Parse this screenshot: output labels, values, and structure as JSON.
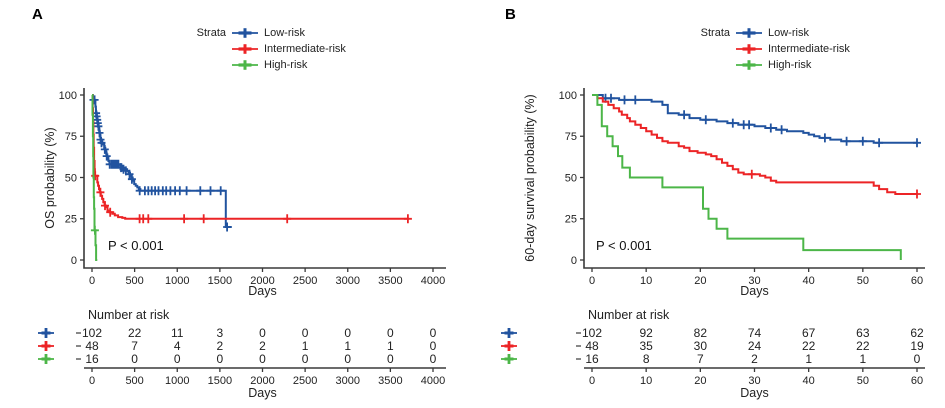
{
  "figure": {
    "background": "#ffffff"
  },
  "panels": [
    {
      "label": "A",
      "legend": {
        "title": "Strata",
        "items": [
          {
            "label": "Low-risk",
            "color": "#21539f"
          },
          {
            "label": "Intermediate-risk",
            "color": "#ec2426"
          },
          {
            "label": "High-risk",
            "color": "#4cb648"
          }
        ]
      }
    },
    {
      "label": "B",
      "legend": {
        "title": "Strata",
        "items": [
          {
            "label": "Low-risk",
            "color": "#21539f"
          },
          {
            "label": "Intermediate-risk",
            "color": "#ec2426"
          },
          {
            "label": "High-risk",
            "color": "#4cb648"
          }
        ]
      }
    }
  ],
  "chart_data": [
    {
      "type": "line",
      "variant": "kaplan_meier_step",
      "panel_label": "A",
      "title": "",
      "xlabel": "Days",
      "ylabel": "OS probability (%)",
      "xlim": [
        0,
        4000
      ],
      "xticks": [
        0,
        500,
        1000,
        1500,
        2000,
        2500,
        3000,
        3500,
        4000
      ],
      "ylim": [
        0,
        100
      ],
      "yticks": [
        0,
        25,
        50,
        75,
        100
      ],
      "grid": false,
      "legend_position": "top",
      "p_value": "P < 0.001",
      "series": [
        {
          "name": "Low-risk",
          "color": "#21539f",
          "steps": [
            [
              0,
              100
            ],
            [
              10,
              97
            ],
            [
              40,
              93
            ],
            [
              46,
              90
            ],
            [
              52,
              88
            ],
            [
              58,
              86
            ],
            [
              64,
              84
            ],
            [
              70,
              82
            ],
            [
              77,
              80
            ],
            [
              84,
              78
            ],
            [
              91,
              76
            ],
            [
              98,
              74
            ],
            [
              106,
              72
            ],
            [
              118,
              71
            ],
            [
              130,
              70
            ],
            [
              143,
              68
            ],
            [
              156,
              66
            ],
            [
              168,
              64
            ],
            [
              180,
              62
            ],
            [
              192,
              60
            ],
            [
              204,
              58
            ],
            [
              330,
              57
            ],
            [
              358,
              56
            ],
            [
              386,
              55
            ],
            [
              412,
              54
            ],
            [
              428,
              53
            ],
            [
              446,
              51
            ],
            [
              462,
              50
            ],
            [
              478,
              48
            ],
            [
              495,
              46
            ],
            [
              513,
              45
            ],
            [
              531,
              44
            ],
            [
              549,
              43
            ],
            [
              568,
              42
            ],
            [
              1570,
              20
            ],
            [
              1640,
              20
            ]
          ],
          "censor_marks": [
            [
              18,
              97
            ],
            [
              30,
              97
            ],
            [
              48,
              89
            ],
            [
              54,
              87
            ],
            [
              61,
              85
            ],
            [
              68,
              83
            ],
            [
              75,
              81
            ],
            [
              88,
              77
            ],
            [
              100,
              73
            ],
            [
              112,
              71
            ],
            [
              150,
              67
            ],
            [
              172,
              63
            ],
            [
              208,
              58
            ],
            [
              230,
              58
            ],
            [
              246,
              58
            ],
            [
              262,
              58
            ],
            [
              278,
              58
            ],
            [
              294,
              58
            ],
            [
              310,
              58
            ],
            [
              340,
              56
            ],
            [
              370,
              55
            ],
            [
              398,
              54
            ],
            [
              440,
              52
            ],
            [
              468,
              49
            ],
            [
              560,
              42
            ],
            [
              620,
              42
            ],
            [
              660,
              42
            ],
            [
              700,
              42
            ],
            [
              740,
              42
            ],
            [
              780,
              42
            ],
            [
              830,
              42
            ],
            [
              870,
              42
            ],
            [
              920,
              42
            ],
            [
              975,
              42
            ],
            [
              1030,
              42
            ],
            [
              1110,
              42
            ],
            [
              1270,
              42
            ],
            [
              1390,
              42
            ],
            [
              1510,
              42
            ],
            [
              1585,
              20
            ]
          ]
        },
        {
          "name": "Intermediate-risk",
          "color": "#ec2426",
          "steps": [
            [
              0,
              100
            ],
            [
              8,
              92
            ],
            [
              12,
              84
            ],
            [
              16,
              76
            ],
            [
              20,
              68
            ],
            [
              25,
              60
            ],
            [
              30,
              55
            ],
            [
              34,
              51
            ],
            [
              62,
              47
            ],
            [
              72,
              45
            ],
            [
              82,
              43
            ],
            [
              92,
              41
            ],
            [
              103,
              39
            ],
            [
              118,
              37
            ],
            [
              133,
              35
            ],
            [
              148,
              33
            ],
            [
              164,
              32
            ],
            [
              182,
              30
            ],
            [
              208,
              29
            ],
            [
              238,
              28
            ],
            [
              268,
              27
            ],
            [
              306,
              26
            ],
            [
              356,
              25.5
            ],
            [
              390,
              25
            ],
            [
              3720,
              25
            ]
          ],
          "censor_marks": [
            [
              38,
              51
            ],
            [
              98,
              41
            ],
            [
              152,
              33
            ],
            [
              214,
              29
            ],
            [
              558,
              25
            ],
            [
              600,
              25
            ],
            [
              660,
              25
            ],
            [
              1080,
              25
            ],
            [
              1310,
              25
            ],
            [
              2290,
              25
            ],
            [
              3705,
              25
            ]
          ]
        },
        {
          "name": "High-risk",
          "color": "#4cb648",
          "steps": [
            [
              0,
              100
            ],
            [
              6,
              88
            ],
            [
              10,
              75
            ],
            [
              14,
              63
            ],
            [
              17,
              50
            ],
            [
              21,
              38
            ],
            [
              25,
              31
            ],
            [
              29,
              18
            ],
            [
              41,
              9
            ],
            [
              48,
              0
            ],
            [
              62,
              0
            ]
          ],
          "censor_marks": [
            [
              34,
              18
            ]
          ]
        }
      ],
      "risk_table": {
        "title": "Number at risk",
        "xlabel": "Days",
        "times": [
          0,
          500,
          1000,
          1500,
          2000,
          2500,
          3000,
          3500,
          4000
        ],
        "rows": [
          {
            "name": "Low-risk",
            "color": "#21539f",
            "counts": [
              102,
              22,
              11,
              3,
              0,
              0,
              0,
              0,
              0
            ]
          },
          {
            "name": "Intermediate-risk",
            "color": "#ec2426",
            "counts": [
              48,
              7,
              4,
              2,
              2,
              1,
              1,
              1,
              0
            ]
          },
          {
            "name": "High-risk",
            "color": "#4cb648",
            "counts": [
              16,
              0,
              0,
              0,
              0,
              0,
              0,
              0,
              0
            ]
          }
        ]
      }
    },
    {
      "type": "line",
      "variant": "kaplan_meier_step",
      "panel_label": "B",
      "title": "",
      "xlabel": "Days",
      "ylabel": "60-day survival probability (%)",
      "xlim": [
        0,
        60
      ],
      "xticks": [
        0,
        10,
        20,
        30,
        40,
        50,
        60
      ],
      "ylim": [
        0,
        100
      ],
      "yticks": [
        0,
        25,
        50,
        75,
        100
      ],
      "grid": false,
      "legend_position": "top",
      "p_value": "P < 0.001",
      "series": [
        {
          "name": "Low-risk",
          "color": "#21539f",
          "steps": [
            [
              0,
              100
            ],
            [
              2,
              98
            ],
            [
              5,
              97
            ],
            [
              11,
              96
            ],
            [
              13,
              94
            ],
            [
              14,
              89
            ],
            [
              16,
              88
            ],
            [
              18,
              86
            ],
            [
              20,
              85
            ],
            [
              23,
              84
            ],
            [
              25,
              83
            ],
            [
              27,
              82
            ],
            [
              30,
              81
            ],
            [
              32,
              80
            ],
            [
              34,
              79
            ],
            [
              36,
              78
            ],
            [
              39,
              77
            ],
            [
              40,
              76
            ],
            [
              41,
              75
            ],
            [
              42,
              74
            ],
            [
              44,
              73
            ],
            [
              46,
              72
            ],
            [
              52,
              71
            ],
            [
              60,
              71
            ]
          ],
          "censor_marks": [
            [
              2.5,
              98
            ],
            [
              3.5,
              98
            ],
            [
              6,
              97
            ],
            [
              8,
              97
            ],
            [
              17,
              88
            ],
            [
              21,
              85
            ],
            [
              26,
              83
            ],
            [
              28,
              82
            ],
            [
              29,
              82
            ],
            [
              33,
              80
            ],
            [
              35,
              79
            ],
            [
              43,
              74
            ],
            [
              47,
              72
            ],
            [
              50,
              72
            ],
            [
              53,
              71
            ],
            [
              60,
              71
            ]
          ]
        },
        {
          "name": "Intermediate-risk",
          "color": "#ec2426",
          "steps": [
            [
              0,
              100
            ],
            [
              1,
              98
            ],
            [
              2,
              96
            ],
            [
              3,
              94
            ],
            [
              4,
              92
            ],
            [
              5,
              90
            ],
            [
              5.5,
              88
            ],
            [
              6.5,
              86
            ],
            [
              7,
              84
            ],
            [
              8,
              82
            ],
            [
              9,
              80
            ],
            [
              10,
              78
            ],
            [
              11,
              76
            ],
            [
              12,
              74
            ],
            [
              13,
              72
            ],
            [
              14,
              71
            ],
            [
              16,
              69
            ],
            [
              17,
              68
            ],
            [
              18,
              66
            ],
            [
              19.5,
              65
            ],
            [
              21,
              64
            ],
            [
              22,
              63
            ],
            [
              23,
              61
            ],
            [
              24,
              59
            ],
            [
              25,
              57
            ],
            [
              26,
              55
            ],
            [
              27,
              53
            ],
            [
              28,
              52
            ],
            [
              31,
              51
            ],
            [
              32,
              50
            ],
            [
              33,
              48
            ],
            [
              34,
              47
            ],
            [
              52,
              45
            ],
            [
              53,
              43
            ],
            [
              54.5,
              41
            ],
            [
              56,
              40
            ],
            [
              60,
              40
            ]
          ],
          "censor_marks": [
            [
              29.5,
              52
            ],
            [
              60,
              40
            ]
          ]
        },
        {
          "name": "High-risk",
          "color": "#4cb648",
          "steps": [
            [
              0,
              100
            ],
            [
              1,
              94
            ],
            [
              1.8,
              81
            ],
            [
              2.8,
              75
            ],
            [
              3.8,
              69
            ],
            [
              4.8,
              63
            ],
            [
              5.6,
              56
            ],
            [
              7,
              50
            ],
            [
              13,
              44
            ],
            [
              20.5,
              31
            ],
            [
              21.5,
              25
            ],
            [
              23,
              19
            ],
            [
              25,
              13
            ],
            [
              39,
              6
            ],
            [
              57,
              0
            ]
          ],
          "censor_marks": []
        }
      ],
      "risk_table": {
        "title": "Number at risk",
        "xlabel": "Days",
        "times": [
          0,
          10,
          20,
          30,
          40,
          50,
          60
        ],
        "rows": [
          {
            "name": "Low-risk",
            "color": "#21539f",
            "counts": [
              102,
              92,
              82,
              74,
              67,
              63,
              62
            ]
          },
          {
            "name": "Intermediate-risk",
            "color": "#ec2426",
            "counts": [
              48,
              35,
              30,
              24,
              22,
              22,
              19
            ]
          },
          {
            "name": "High-risk",
            "color": "#4cb648",
            "counts": [
              16,
              8,
              7,
              2,
              1,
              1,
              0
            ]
          }
        ]
      }
    }
  ]
}
